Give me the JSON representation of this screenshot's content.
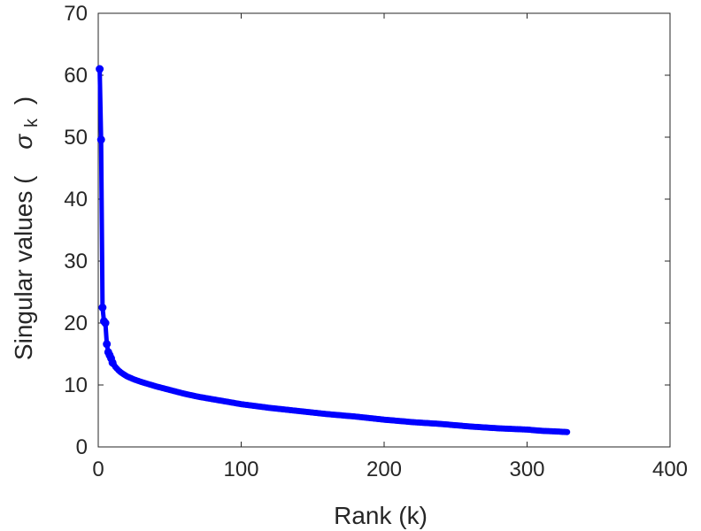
{
  "chart_data": {
    "type": "line",
    "title": "",
    "xlabel": "Rank (k)",
    "ylabel": "Singular values (",
    "ylabel_symbol": "σ",
    "ylabel_sub": "k",
    "ylabel_close": ")",
    "xlim": [
      0,
      400
    ],
    "ylim": [
      0,
      70
    ],
    "xticks": [
      "0",
      "100",
      "200",
      "300",
      "400"
    ],
    "yticks": [
      "0",
      "10",
      "20",
      "30",
      "40",
      "50",
      "60",
      "70"
    ],
    "grid": false,
    "color": "#0000ff",
    "series": [
      {
        "name": "singular values",
        "x": [
          1,
          2,
          3,
          4,
          5,
          6,
          7,
          8,
          9,
          10,
          12,
          14,
          16,
          18,
          20,
          25,
          30,
          40,
          50,
          60,
          70,
          80,
          90,
          100,
          120,
          140,
          160,
          180,
          200,
          220,
          240,
          260,
          280,
          300,
          310,
          320,
          328
        ],
        "y": [
          61,
          49.6,
          22.5,
          20.3,
          20,
          16.6,
          15.3,
          14.8,
          14.3,
          13.6,
          12.9,
          12.4,
          12.0,
          11.7,
          11.4,
          10.9,
          10.5,
          9.8,
          9.2,
          8.6,
          8.1,
          7.7,
          7.3,
          6.9,
          6.3,
          5.8,
          5.3,
          4.9,
          4.4,
          4.0,
          3.7,
          3.3,
          3.0,
          2.8,
          2.6,
          2.5,
          2.4
        ]
      }
    ]
  }
}
